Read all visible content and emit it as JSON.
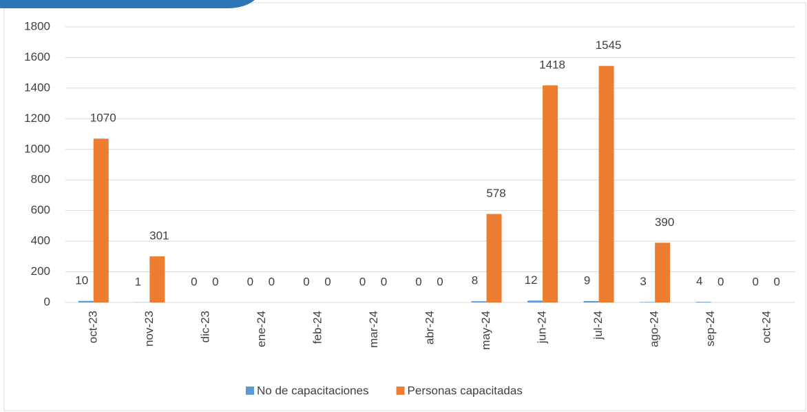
{
  "chart_data": {
    "type": "bar",
    "categories": [
      "oct-23",
      "nov-23",
      "dic-23",
      "ene-24",
      "feb-24",
      "mar-24",
      "abr-24",
      "may-24",
      "jun-24",
      "jul-24",
      "ago-24",
      "sep-24",
      "oct-24"
    ],
    "series": [
      {
        "name": "No de capacitaciones",
        "color": "#5b9bd5",
        "values": [
          10,
          1,
          0,
          0,
          0,
          0,
          0,
          8,
          12,
          9,
          3,
          4,
          0
        ]
      },
      {
        "name": "Personas capacitadas",
        "color": "#ed7d31",
        "values": [
          1070,
          301,
          0,
          0,
          0,
          0,
          0,
          578,
          1418,
          1545,
          390,
          0,
          0
        ]
      }
    ],
    "ylim": [
      0,
      1800
    ],
    "yticks": [
      0,
      200,
      400,
      600,
      800,
      1000,
      1200,
      1400,
      1600,
      1800
    ],
    "grid": true,
    "legend": "bottom"
  }
}
